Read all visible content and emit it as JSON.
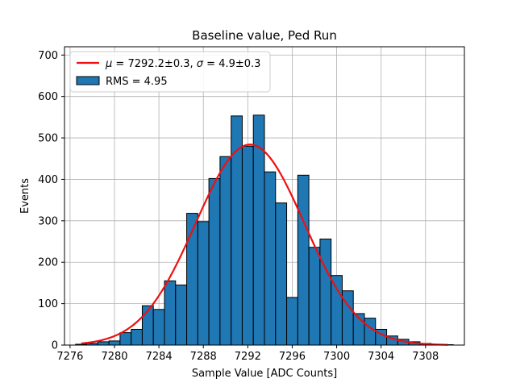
{
  "chart_data": {
    "type": "bar",
    "title": "Baseline value, Ped Run",
    "xlabel": "Sample Value [ADC Counts]",
    "ylabel": "Events",
    "xlim": [
      7275.5,
      7311.5
    ],
    "ylim": [
      0,
      720
    ],
    "xticks": [
      7276,
      7280,
      7284,
      7288,
      7292,
      7296,
      7300,
      7304,
      7308
    ],
    "yticks": [
      0,
      100,
      200,
      300,
      400,
      500,
      600,
      700
    ],
    "grid": true,
    "legend_position": "top-left",
    "bin_width": 1,
    "bins": [
      {
        "x": 7277,
        "count": 2
      },
      {
        "x": 7278,
        "count": 4
      },
      {
        "x": 7279,
        "count": 8
      },
      {
        "x": 7280,
        "count": 10
      },
      {
        "x": 7281,
        "count": 30
      },
      {
        "x": 7282,
        "count": 38
      },
      {
        "x": 7283,
        "count": 95
      },
      {
        "x": 7284,
        "count": 86
      },
      {
        "x": 7285,
        "count": 155
      },
      {
        "x": 7286,
        "count": 145
      },
      {
        "x": 7287,
        "count": 318
      },
      {
        "x": 7288,
        "count": 298
      },
      {
        "x": 7289,
        "count": 402
      },
      {
        "x": 7290,
        "count": 455
      },
      {
        "x": 7291,
        "count": 553
      },
      {
        "x": 7292,
        "count": 480
      },
      {
        "x": 7293,
        "count": 555
      },
      {
        "x": 7294,
        "count": 418
      },
      {
        "x": 7295,
        "count": 343
      },
      {
        "x": 7296,
        "count": 115
      },
      {
        "x": 7297,
        "count": 410
      },
      {
        "x": 7298,
        "count": 236
      },
      {
        "x": 7299,
        "count": 256
      },
      {
        "x": 7300,
        "count": 168
      },
      {
        "x": 7301,
        "count": 131
      },
      {
        "x": 7302,
        "count": 76
      },
      {
        "x": 7303,
        "count": 65
      },
      {
        "x": 7304,
        "count": 38
      },
      {
        "x": 7305,
        "count": 22
      },
      {
        "x": 7306,
        "count": 14
      },
      {
        "x": 7307,
        "count": 8
      },
      {
        "x": 7308,
        "count": 4
      },
      {
        "x": 7309,
        "count": 2
      },
      {
        "x": 7310,
        "count": 1
      }
    ],
    "fit": {
      "type": "gaussian",
      "mu": 7292.2,
      "sigma": 4.9,
      "amplitude": 484,
      "x_range": [
        7277,
        7310
      ]
    },
    "legend": [
      {
        "label": "μ = 7292.2±0.3, σ = 4.9±0.3",
        "label_parts": [
          "μ",
          " = 7292.2±0.3, ",
          "σ",
          " = 4.9±0.3"
        ],
        "color": "#ee1010",
        "kind": "line"
      },
      {
        "label": "RMS = 4.95",
        "color": "#1f77b4",
        "kind": "patch"
      }
    ],
    "colors": {
      "bar_fill": "#1f77b4",
      "bar_edge": "#000000",
      "fit_line": "#ee1010",
      "grid": "#b0b0b0"
    }
  }
}
